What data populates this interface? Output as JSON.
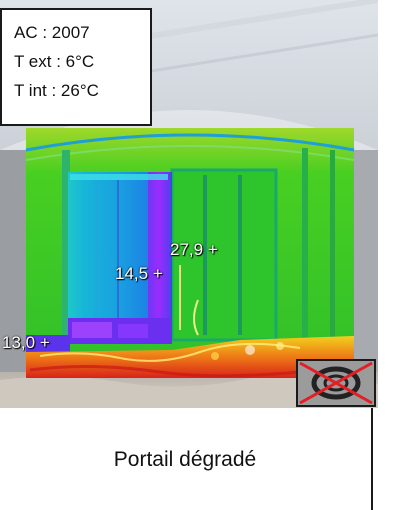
{
  "info_box": {
    "line1": "AC : 2007",
    "line2": "T ext : 6°C",
    "line3": "T int : 26°C"
  },
  "thermal_readings": [
    {
      "value": "27,9",
      "marker": "+"
    },
    {
      "value": "14,5",
      "marker": "+"
    },
    {
      "value": "13,0",
      "marker": "+"
    }
  ],
  "caption": "Portail dégradé",
  "icons": {
    "status": "crossed-out-rating-icon"
  },
  "colors": {
    "thermal_green": "#3ecb2a",
    "cold_purple": "#7a2cff",
    "warm_red": "#e2261c",
    "cross_red": "#e31f26"
  }
}
